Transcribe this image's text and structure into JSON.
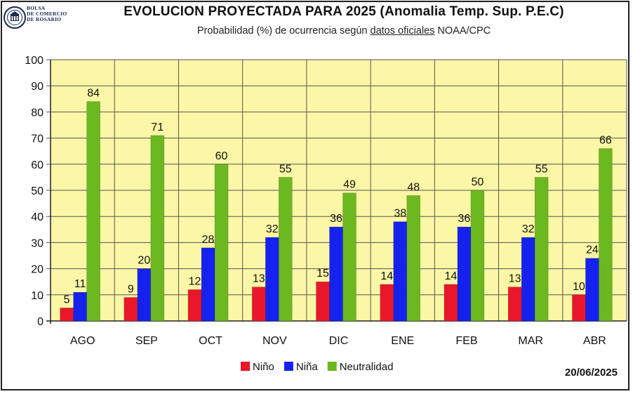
{
  "header": {
    "logo_line1": "BOLSA",
    "logo_line2": "DE COMERCIO",
    "logo_line3": "DE ROSARIO",
    "title": "EVOLUCION PROYECTADA PARA 2025 (Anomalia Temp. Sup. P.E.C)",
    "subtitle_pre": "Probabilidad (%) de ocurrencia según ",
    "subtitle_link": "datos oficiales",
    "subtitle_post": " NOAA/CPC"
  },
  "date": "20/06/2025",
  "colors": {
    "plot_bg": "#fbf7a6",
    "grid": "#555555",
    "nino": "#e8182a",
    "nina": "#1522ee",
    "neutral": "#6cb820"
  },
  "chart_data": {
    "type": "bar",
    "title": "EVOLUCION PROYECTADA PARA 2025 (Anomalia Temp. Sup. P.E.C)",
    "xlabel": "",
    "ylabel": "",
    "ylim": [
      0,
      100
    ],
    "yticks": [
      0,
      10,
      20,
      30,
      40,
      50,
      60,
      70,
      80,
      90,
      100
    ],
    "grid": true,
    "legend_position": "bottom-center",
    "categories": [
      "AGO",
      "SEP",
      "OCT",
      "NOV",
      "DIC",
      "ENE",
      "FEB",
      "MAR",
      "ABR"
    ],
    "series": [
      {
        "name": "Niño",
        "color": "#e8182a",
        "values": [
          5,
          9,
          12,
          13,
          15,
          14,
          14,
          13,
          10
        ]
      },
      {
        "name": "Niña",
        "color": "#1522ee",
        "values": [
          11,
          20,
          28,
          32,
          36,
          38,
          36,
          32,
          24
        ]
      },
      {
        "name": "Neutralidad",
        "color": "#6cb820",
        "values": [
          84,
          71,
          60,
          55,
          49,
          48,
          50,
          55,
          66
        ]
      }
    ]
  }
}
